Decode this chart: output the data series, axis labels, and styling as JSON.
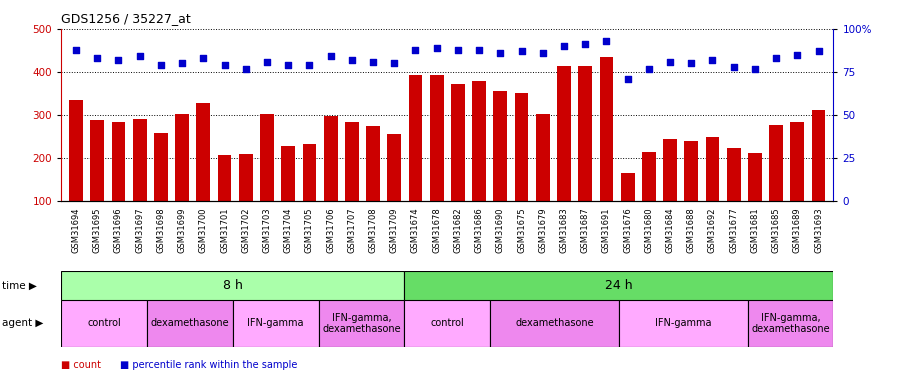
{
  "title": "GDS1256 / 35227_at",
  "samples": [
    "GSM31694",
    "GSM31695",
    "GSM31696",
    "GSM31697",
    "GSM31698",
    "GSM31699",
    "GSM31700",
    "GSM31701",
    "GSM31702",
    "GSM31703",
    "GSM31704",
    "GSM31705",
    "GSM31706",
    "GSM31707",
    "GSM31708",
    "GSM31709",
    "GSM31674",
    "GSM31678",
    "GSM31682",
    "GSM31686",
    "GSM31690",
    "GSM31675",
    "GSM31679",
    "GSM31683",
    "GSM31687",
    "GSM31691",
    "GSM31676",
    "GSM31680",
    "GSM31684",
    "GSM31688",
    "GSM31692",
    "GSM31677",
    "GSM31681",
    "GSM31685",
    "GSM31689",
    "GSM31693"
  ],
  "bar_values": [
    335,
    288,
    283,
    290,
    258,
    302,
    327,
    207,
    210,
    302,
    228,
    232,
    297,
    283,
    275,
    256,
    393,
    393,
    372,
    380,
    355,
    352,
    302,
    413,
    415,
    435,
    165,
    215,
    245,
    240,
    250,
    224,
    212,
    278,
    285,
    313
  ],
  "percentile_values": [
    88,
    83,
    82,
    84,
    79,
    80,
    83,
    79,
    77,
    81,
    79,
    79,
    84,
    82,
    81,
    80,
    88,
    89,
    88,
    88,
    86,
    87,
    86,
    90,
    91,
    93,
    71,
    77,
    81,
    80,
    82,
    78,
    77,
    83,
    85,
    87
  ],
  "bar_color": "#cc0000",
  "dot_color": "#0000cc",
  "ylim_left": [
    100,
    500
  ],
  "ylim_right": [
    0,
    100
  ],
  "yticks_left": [
    100,
    200,
    300,
    400,
    500
  ],
  "yticks_right": [
    0,
    25,
    50,
    75,
    100
  ],
  "time_groups": [
    {
      "label": "8 h",
      "start": 0,
      "end": 16,
      "color": "#aaffaa"
    },
    {
      "label": "24 h",
      "start": 16,
      "end": 36,
      "color": "#66dd66"
    }
  ],
  "agent_groups": [
    {
      "label": "control",
      "start": 0,
      "end": 4,
      "color": "#ffaaff"
    },
    {
      "label": "dexamethasone",
      "start": 4,
      "end": 8,
      "color": "#ee88ee"
    },
    {
      "label": "IFN-gamma",
      "start": 8,
      "end": 12,
      "color": "#ffaaff"
    },
    {
      "label": "IFN-gamma,\ndexamethasone",
      "start": 12,
      "end": 16,
      "color": "#ee88ee"
    },
    {
      "label": "control",
      "start": 16,
      "end": 20,
      "color": "#ffaaff"
    },
    {
      "label": "dexamethasone",
      "start": 20,
      "end": 26,
      "color": "#ee88ee"
    },
    {
      "label": "IFN-gamma",
      "start": 26,
      "end": 32,
      "color": "#ffaaff"
    },
    {
      "label": "IFN-gamma,\ndexamethasone",
      "start": 32,
      "end": 36,
      "color": "#ee88ee"
    }
  ],
  "background_color": "#ffffff",
  "plot_bg_color": "#ffffff"
}
